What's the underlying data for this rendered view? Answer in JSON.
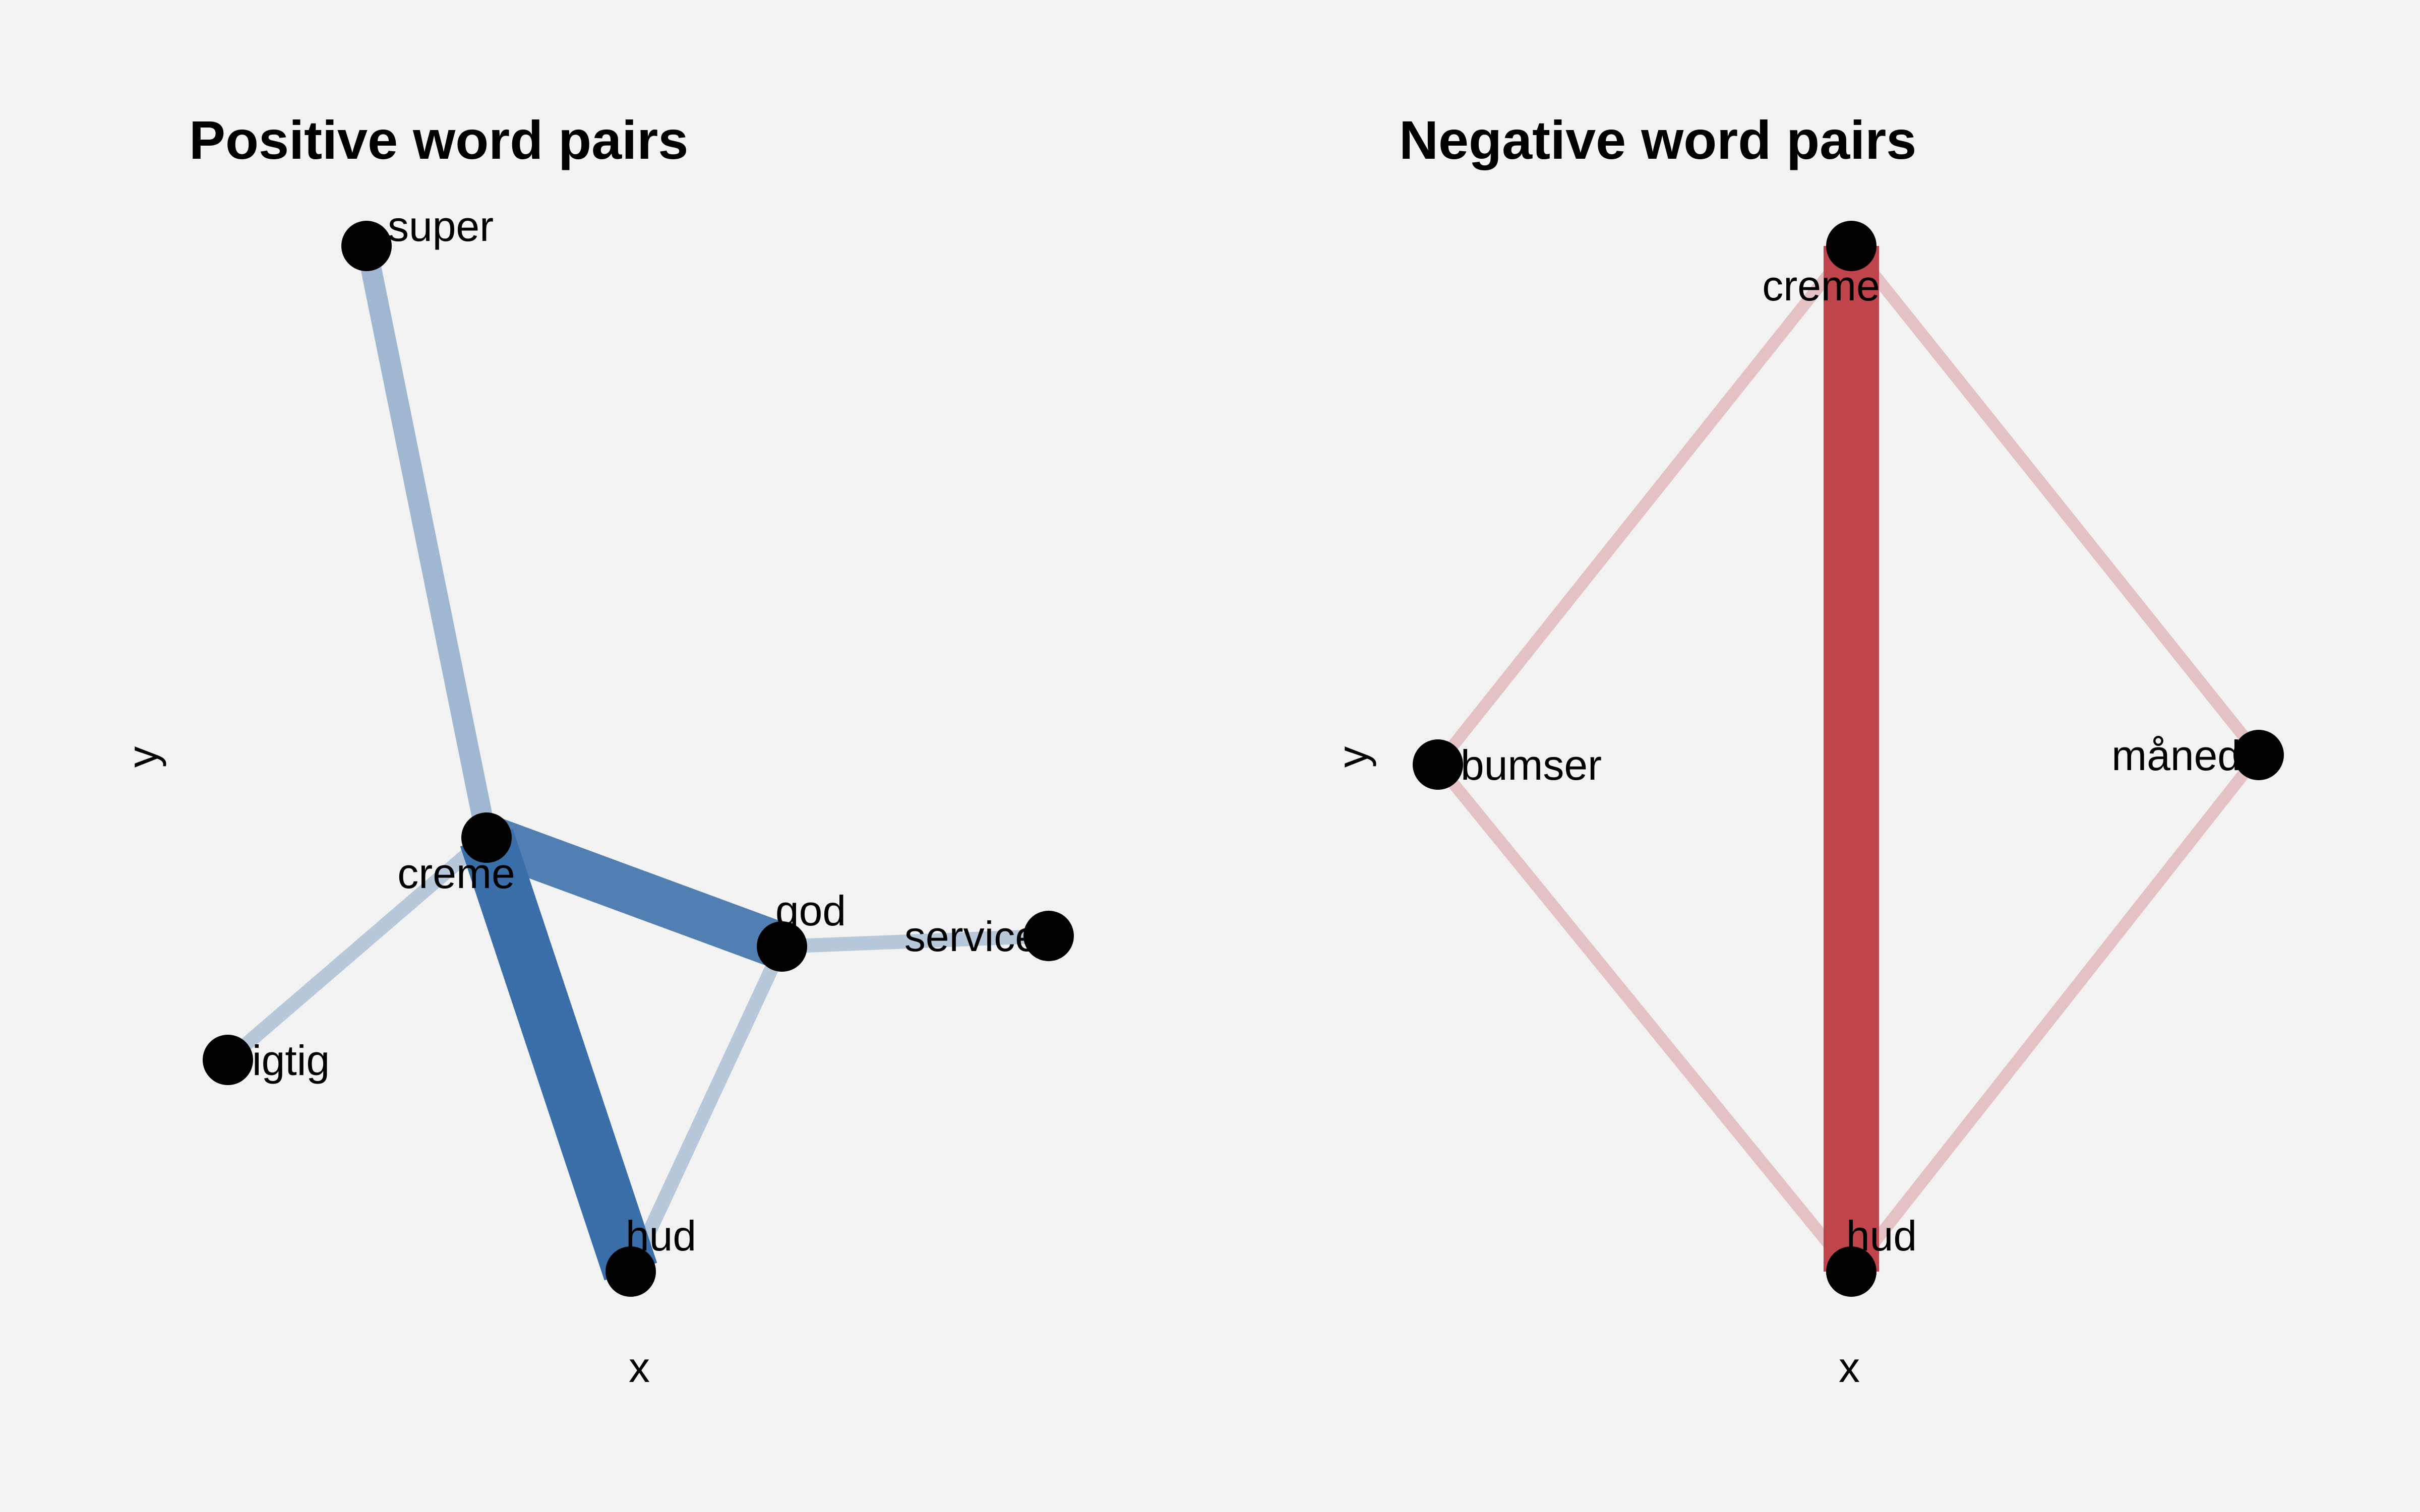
{
  "panels": [
    {
      "id": "positive",
      "title": "Positive word pairs",
      "x_axis_label": "x",
      "y_axis_label": "y",
      "edge_color": "#3a6ea8",
      "nodes": [
        {
          "id": "super",
          "label": "super"
        },
        {
          "id": "creme",
          "label": "creme"
        },
        {
          "id": "god",
          "label": "god"
        },
        {
          "id": "service",
          "label": "service"
        },
        {
          "id": "rigtig",
          "label": "rigtig"
        },
        {
          "id": "hud",
          "label": "hud"
        }
      ],
      "edges": [
        {
          "source": "creme",
          "target": "super",
          "weight": 0.35
        },
        {
          "source": "creme",
          "target": "rigtig",
          "weight": 0.2
        },
        {
          "source": "god",
          "target": "service",
          "weight": 0.2
        },
        {
          "source": "god",
          "target": "hud",
          "weight": 0.2
        },
        {
          "source": "creme",
          "target": "god",
          "weight": 0.85
        },
        {
          "source": "creme",
          "target": "hud",
          "weight": 1.0
        }
      ]
    },
    {
      "id": "negative",
      "title": "Negative word pairs",
      "x_axis_label": "x",
      "y_axis_label": "y",
      "edge_color": "#c0444b",
      "nodes": [
        {
          "id": "creme",
          "label": "creme"
        },
        {
          "id": "bumser",
          "label": "bumser"
        },
        {
          "id": "maaned",
          "label": "måned"
        },
        {
          "id": "hud",
          "label": "hud"
        }
      ],
      "edges": [
        {
          "source": "creme",
          "target": "bumser",
          "weight": 0.15
        },
        {
          "source": "creme",
          "target": "maaned",
          "weight": 0.15
        },
        {
          "source": "bumser",
          "target": "hud",
          "weight": 0.15
        },
        {
          "source": "maaned",
          "target": "hud",
          "weight": 0.15
        },
        {
          "source": "creme",
          "target": "hud",
          "weight": 1.0
        }
      ]
    }
  ],
  "colors": {
    "background": "#f2f2f2",
    "node_fill": "#000000",
    "text": "#000000"
  }
}
